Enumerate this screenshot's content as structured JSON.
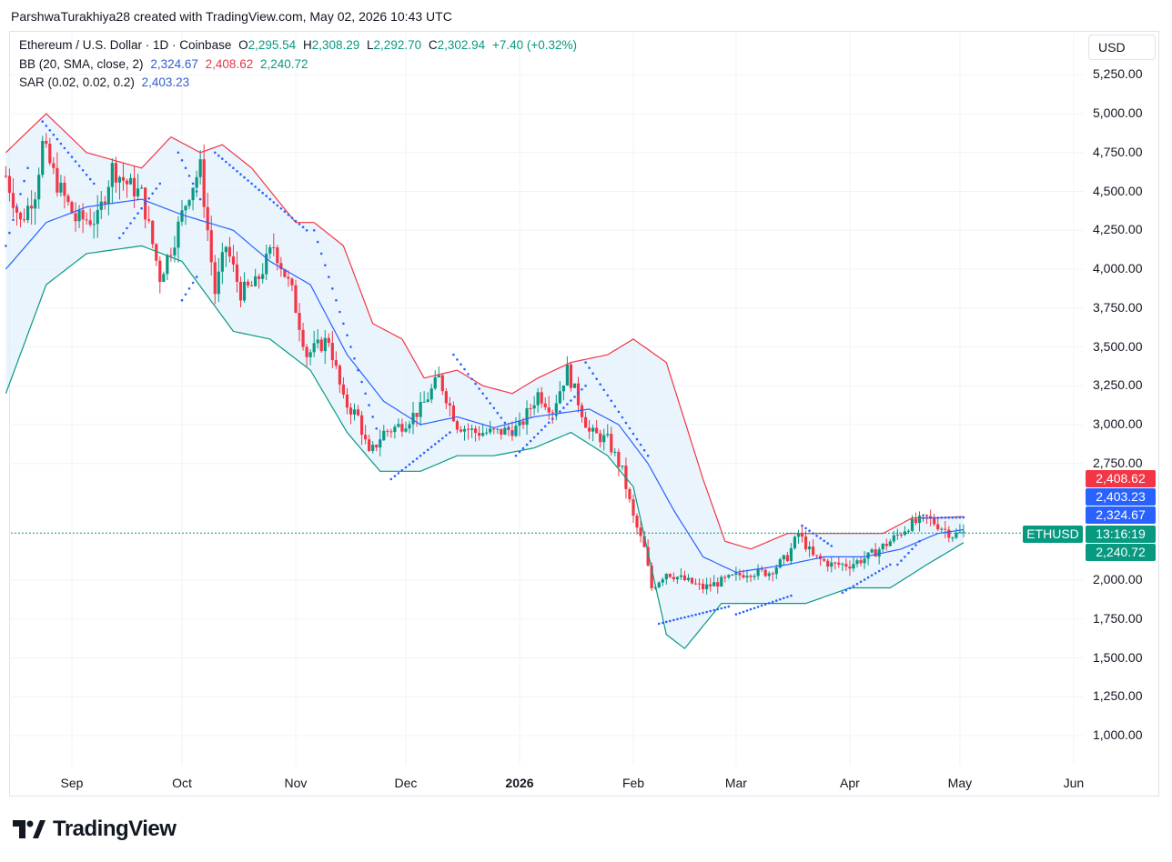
{
  "header": {
    "attribution": "ParshwaTurakhiya28 created with TradingView.com, May 02, 2026 10:43 UTC"
  },
  "legend": {
    "symbol": "Ethereum / U.S. Dollar · 1D · Coinbase",
    "open_label": "O",
    "open": "2,295.54",
    "high_label": "H",
    "high": "2,308.29",
    "low_label": "L",
    "low": "2,292.70",
    "close_label": "C",
    "close": "2,302.94",
    "change": "+7.40 (+0.32%)",
    "bb_label": "BB (20, SMA, close, 2)",
    "bb_basis": "2,324.67",
    "bb_upper": "2,408.62",
    "bb_lower": "2,240.72",
    "sar_label": "SAR (0.02, 0.02, 0.2)",
    "sar_value": "2,403.23"
  },
  "currency": "USD",
  "price_labels": {
    "bb_upper": "2,408.62",
    "sar": "2,403.23",
    "bb_basis": "2,324.67",
    "countdown": "13:16:19",
    "bb_lower": "2,240.72",
    "symbol_tag": "ETHUSD"
  },
  "colors": {
    "up": "#089981",
    "down": "#f23645",
    "bb_basis": "#2962ff",
    "bb_upper": "#f23645",
    "bb_lower": "#089981",
    "sar": "#2962ff",
    "band_fill": "#e3f0fc"
  },
  "brand": {
    "name": "TradingView"
  },
  "chart_data": {
    "type": "candlestick",
    "title": "Ethereum / U.S. Dollar · 1D · Coinbase",
    "y_ticks": [
      "5,250.00",
      "5,000.00",
      "4,750.00",
      "4,500.00",
      "4,250.00",
      "4,000.00",
      "3,750.00",
      "3,500.00",
      "3,250.00",
      "3,000.00",
      "2,750.00",
      "2,000.00",
      "1,750.00",
      "1,500.00",
      "1,250.00",
      "1,000.00"
    ],
    "x_ticks": [
      {
        "label": "Sep",
        "date": "2025-09-01"
      },
      {
        "label": "Oct",
        "date": "2025-10-01"
      },
      {
        "label": "Nov",
        "date": "2025-11-01"
      },
      {
        "label": "Dec",
        "date": "2025-12-01"
      },
      {
        "label": "2026",
        "date": "2026-01-01"
      },
      {
        "label": "Feb",
        "date": "2026-02-01"
      },
      {
        "label": "Mar",
        "date": "2026-03-01"
      },
      {
        "label": "Apr",
        "date": "2026-04-01"
      },
      {
        "label": "May",
        "date": "2026-05-01"
      },
      {
        "label": "Jun",
        "date": "2026-06-01"
      }
    ],
    "ylim": [
      900,
      5400
    ],
    "close_series": [
      [
        "2025-08-14",
        4600
      ],
      [
        "2025-08-18",
        4300
      ],
      [
        "2025-08-22",
        4500
      ],
      [
        "2025-08-24",
        4800
      ],
      [
        "2025-08-28",
        4550
      ],
      [
        "2025-09-02",
        4320
      ],
      [
        "2025-09-08",
        4320
      ],
      [
        "2025-09-12",
        4650
      ],
      [
        "2025-09-16",
        4550
      ],
      [
        "2025-09-20",
        4480
      ],
      [
        "2025-09-25",
        3950
      ],
      [
        "2025-09-29",
        4200
      ],
      [
        "2025-10-03",
        4500
      ],
      [
        "2025-10-06",
        4650
      ],
      [
        "2025-10-10",
        3850
      ],
      [
        "2025-10-13",
        4150
      ],
      [
        "2025-10-17",
        3850
      ],
      [
        "2025-10-21",
        3900
      ],
      [
        "2025-10-26",
        4150
      ],
      [
        "2025-10-31",
        3850
      ],
      [
        "2025-11-04",
        3450
      ],
      [
        "2025-11-10",
        3550
      ],
      [
        "2025-11-14",
        3150
      ],
      [
        "2025-11-18",
        3050
      ],
      [
        "2025-11-21",
        2800
      ],
      [
        "2025-11-25",
        2950
      ],
      [
        "2025-11-30",
        3000
      ],
      [
        "2025-12-05",
        3100
      ],
      [
        "2025-12-10",
        3300
      ],
      [
        "2025-12-15",
        3000
      ],
      [
        "2025-12-20",
        2950
      ],
      [
        "2025-12-26",
        2950
      ],
      [
        "2026-01-01",
        2980
      ],
      [
        "2026-01-06",
        3200
      ],
      [
        "2026-01-10",
        3100
      ],
      [
        "2026-01-14",
        3350
      ],
      [
        "2026-01-20",
        2950
      ],
      [
        "2026-01-25",
        2900
      ],
      [
        "2026-01-29",
        2700
      ],
      [
        "2026-02-01",
        2400
      ],
      [
        "2026-02-04",
        2200
      ],
      [
        "2026-02-06",
        1950
      ],
      [
        "2026-02-10",
        2050
      ],
      [
        "2026-02-15",
        2000
      ],
      [
        "2026-02-20",
        1950
      ],
      [
        "2026-02-26",
        2000
      ],
      [
        "2026-03-04",
        2050
      ],
      [
        "2026-03-10",
        2050
      ],
      [
        "2026-03-15",
        2150
      ],
      [
        "2026-03-18",
        2300
      ],
      [
        "2026-03-22",
        2150
      ],
      [
        "2026-03-27",
        2100
      ],
      [
        "2026-04-01",
        2100
      ],
      [
        "2026-04-06",
        2150
      ],
      [
        "2026-04-12",
        2250
      ],
      [
        "2026-04-17",
        2350
      ],
      [
        "2026-04-22",
        2400
      ],
      [
        "2026-04-26",
        2340
      ],
      [
        "2026-04-29",
        2290
      ],
      [
        "2026-05-02",
        2302.94
      ]
    ],
    "bb_upper_series": [
      [
        "2025-08-14",
        4750
      ],
      [
        "2025-08-25",
        5000
      ],
      [
        "2025-09-05",
        4750
      ],
      [
        "2025-09-20",
        4650
      ],
      [
        "2025-09-28",
        4850
      ],
      [
        "2025-10-06",
        4750
      ],
      [
        "2025-10-12",
        4800
      ],
      [
        "2025-10-20",
        4650
      ],
      [
        "2025-11-01",
        4300
      ],
      [
        "2025-11-06",
        4300
      ],
      [
        "2025-11-14",
        4150
      ],
      [
        "2025-11-22",
        3650
      ],
      [
        "2025-11-30",
        3550
      ],
      [
        "2025-12-06",
        3300
      ],
      [
        "2025-12-15",
        3350
      ],
      [
        "2025-12-22",
        3250
      ],
      [
        "2025-12-30",
        3200
      ],
      [
        "2026-01-06",
        3300
      ],
      [
        "2026-01-15",
        3400
      ],
      [
        "2026-01-25",
        3450
      ],
      [
        "2026-02-01",
        3550
      ],
      [
        "2026-02-10",
        3400
      ],
      [
        "2026-02-20",
        2650
      ],
      [
        "2026-02-26",
        2250
      ],
      [
        "2026-03-05",
        2200
      ],
      [
        "2026-03-15",
        2300
      ],
      [
        "2026-03-22",
        2300
      ],
      [
        "2026-04-01",
        2300
      ],
      [
        "2026-04-10",
        2300
      ],
      [
        "2026-04-18",
        2400
      ],
      [
        "2026-04-25",
        2400
      ],
      [
        "2026-05-02",
        2408.62
      ]
    ],
    "bb_basis_series": [
      [
        "2025-08-14",
        4000
      ],
      [
        "2025-08-25",
        4300
      ],
      [
        "2025-09-05",
        4400
      ],
      [
        "2025-09-20",
        4450
      ],
      [
        "2025-10-01",
        4350
      ],
      [
        "2025-10-15",
        4250
      ],
      [
        "2025-10-25",
        4050
      ],
      [
        "2025-11-05",
        3900
      ],
      [
        "2025-11-15",
        3450
      ],
      [
        "2025-11-25",
        3150
      ],
      [
        "2025-12-05",
        3000
      ],
      [
        "2025-12-15",
        3050
      ],
      [
        "2025-12-25",
        2980
      ],
      [
        "2026-01-05",
        3050
      ],
      [
        "2026-01-20",
        3100
      ],
      [
        "2026-01-28",
        3000
      ],
      [
        "2026-02-05",
        2750
      ],
      [
        "2026-02-12",
        2450
      ],
      [
        "2026-02-20",
        2150
      ],
      [
        "2026-03-01",
        2050
      ],
      [
        "2026-03-15",
        2100
      ],
      [
        "2026-03-25",
        2150
      ],
      [
        "2026-04-05",
        2150
      ],
      [
        "2026-04-15",
        2200
      ],
      [
        "2026-04-25",
        2300
      ],
      [
        "2026-05-02",
        2324.67
      ]
    ],
    "bb_lower_series": [
      [
        "2025-08-14",
        3200
      ],
      [
        "2025-08-25",
        3900
      ],
      [
        "2025-09-05",
        4100
      ],
      [
        "2025-09-20",
        4150
      ],
      [
        "2025-10-01",
        4050
      ],
      [
        "2025-10-15",
        3600
      ],
      [
        "2025-10-25",
        3550
      ],
      [
        "2025-11-05",
        3350
      ],
      [
        "2025-11-15",
        2950
      ],
      [
        "2025-11-24",
        2700
      ],
      [
        "2025-12-05",
        2700
      ],
      [
        "2025-12-15",
        2800
      ],
      [
        "2025-12-25",
        2800
      ],
      [
        "2026-01-05",
        2850
      ],
      [
        "2026-01-15",
        2950
      ],
      [
        "2026-01-25",
        2800
      ],
      [
        "2026-02-01",
        2600
      ],
      [
        "2026-02-10",
        1650
      ],
      [
        "2026-02-15",
        1560
      ],
      [
        "2026-02-25",
        1850
      ],
      [
        "2026-03-10",
        1850
      ],
      [
        "2026-03-20",
        1850
      ],
      [
        "2026-04-01",
        1950
      ],
      [
        "2026-04-12",
        1950
      ],
      [
        "2026-04-22",
        2100
      ],
      [
        "2026-05-02",
        2240.72
      ]
    ],
    "sar_segments": [
      {
        "from": [
          "2025-08-14",
          4150
        ],
        "to": [
          "2025-08-20",
          4650
        ]
      },
      {
        "from": [
          "2025-08-24",
          4950
        ],
        "to": [
          "2025-09-07",
          4550
        ]
      },
      {
        "from": [
          "2025-09-14",
          4200
        ],
        "to": [
          "2025-09-25",
          4550
        ]
      },
      {
        "from": [
          "2025-09-30",
          4750
        ],
        "to": [
          "2025-10-06",
          4450
        ]
      },
      {
        "from": [
          "2025-10-10",
          4750
        ],
        "to": [
          "2025-11-04",
          4250
        ]
      },
      {
        "from": [
          "2025-10-01",
          3800
        ],
        "to": [
          "2025-10-05",
          3950
        ]
      },
      {
        "from": [
          "2025-11-06",
          4250
        ],
        "to": [
          "2025-11-24",
          2900
        ]
      },
      {
        "from": [
          "2025-11-27",
          2650
        ],
        "to": [
          "2025-12-13",
          2950
        ]
      },
      {
        "from": [
          "2025-12-14",
          3450
        ],
        "to": [
          "2025-12-30",
          2950
        ]
      },
      {
        "from": [
          "2025-12-31",
          2800
        ],
        "to": [
          "2026-01-19",
          3250
        ]
      },
      {
        "from": [
          "2026-01-19",
          3400
        ],
        "to": [
          "2026-02-05",
          2800
        ]
      },
      {
        "from": [
          "2026-02-08",
          1720
        ],
        "to": [
          "2026-02-27",
          1830
        ]
      },
      {
        "from": [
          "2026-03-01",
          1780
        ],
        "to": [
          "2026-03-16",
          1900
        ]
      },
      {
        "from": [
          "2026-03-19",
          2350
        ],
        "to": [
          "2026-03-27",
          2220
        ]
      },
      {
        "from": [
          "2026-03-30",
          1920
        ],
        "to": [
          "2026-04-12",
          2100
        ]
      },
      {
        "from": [
          "2026-04-14",
          2100
        ],
        "to": [
          "2026-04-20",
          2250
        ]
      },
      {
        "from": [
          "2026-04-21",
          2400
        ],
        "to": [
          "2026-05-02",
          2403.23
        ]
      }
    ]
  }
}
